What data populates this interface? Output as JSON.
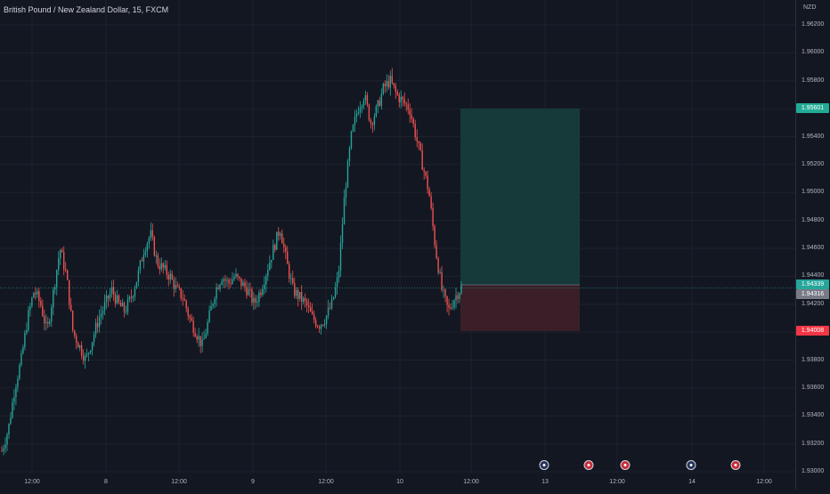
{
  "chart": {
    "title": "British Pound / New Zealand Dollar, 15, FXCM",
    "currency": "NZD",
    "price_axis": [
      "1.96200",
      "1.96000",
      "1.95800",
      "1.95600",
      "1.95400",
      "1.95200",
      "1.95000",
      "1.94800",
      "1.94600",
      "1.94400",
      "1.94200",
      "1.94000",
      "1.93800",
      "1.93600",
      "1.93400",
      "1.93200",
      "1.93000"
    ],
    "time_axis": [
      "12:00",
      "8",
      "12:00",
      "9",
      "12:00",
      "10",
      "12:00",
      "13",
      "12:00",
      "14",
      "12:00"
    ],
    "tags": {
      "target": "1.95601",
      "entry": "1.94339",
      "current": "1.94316",
      "stop": "1.94008"
    },
    "colors": {
      "up": "#26a69a",
      "down": "#ef5350",
      "profit_zone": "#153a39",
      "loss_zone": "#3b1f28",
      "target_tag": "#22ab94",
      "entry_tag": "#26a69a",
      "current_tag": "#787b86",
      "stop_tag": "#f23645"
    },
    "events": [
      {
        "icon": "nz-flag-icon",
        "type": "nz"
      },
      {
        "icon": "ch-flag-icon",
        "type": "ch"
      },
      {
        "icon": "ch-flag-icon",
        "type": "ch"
      },
      {
        "icon": "nz-flag-icon",
        "type": "nz"
      },
      {
        "icon": "ch-flag-icon",
        "type": "ch"
      }
    ]
  },
  "chart_data": {
    "type": "candlestick",
    "symbol": "GBPNZD",
    "interval": "15",
    "ylim": [
      1.93,
      1.962
    ],
    "close_path": [
      1.9315,
      1.933,
      1.936,
      1.938,
      1.941,
      1.943,
      1.942,
      1.94,
      1.943,
      1.946,
      1.944,
      1.94,
      1.939,
      1.938,
      1.9395,
      1.941,
      1.942,
      1.943,
      1.942,
      1.9415,
      1.9425,
      1.944,
      1.946,
      1.947,
      1.945,
      1.9445,
      1.944,
      1.943,
      1.9425,
      1.941,
      1.94,
      1.939,
      1.941,
      1.943,
      1.944,
      1.9435,
      1.944,
      1.9435,
      1.943,
      1.942,
      1.943,
      1.9445,
      1.946,
      1.9475,
      1.945,
      1.943,
      1.9425,
      1.942,
      1.941,
      1.9405,
      1.941,
      1.942,
      1.944,
      1.95,
      1.954,
      1.956,
      1.957,
      1.955,
      1.956,
      1.9575,
      1.958,
      1.957,
      1.9565,
      1.956,
      1.954,
      1.952,
      1.95,
      1.946,
      1.943,
      1.9415,
      1.9425,
      1.9432
    ],
    "trade": {
      "target": 1.95601,
      "entry": 1.94339,
      "stop": 1.94008,
      "current": 1.94316
    }
  }
}
